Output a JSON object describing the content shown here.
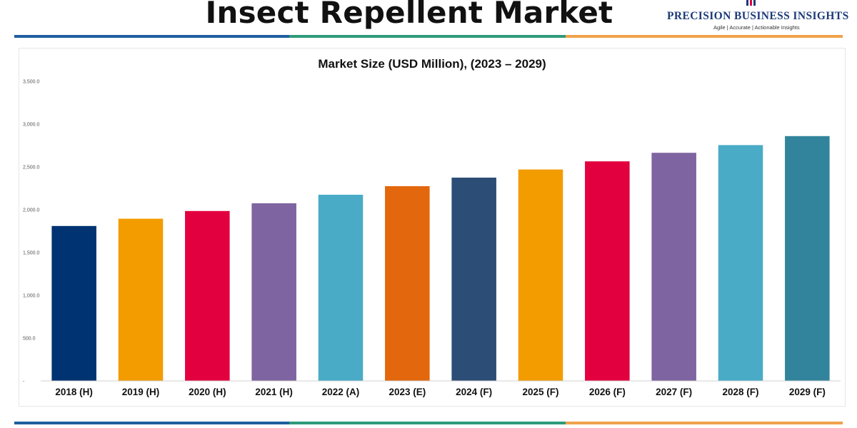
{
  "header": {
    "title": "Insect Repellent Market",
    "brand_name": "PRECISION BUSINESS INSIGHTS",
    "brand_tagline": "Agile | Accurate | Actionable Insights",
    "rule_colors": [
      "#1f5f9e",
      "#2e9a7a",
      "#f0a24a"
    ]
  },
  "chart_data": {
    "type": "bar",
    "title": "Market Size (USD Million), (2023 – 2029)",
    "xlabel": "",
    "ylabel": "",
    "categories": [
      "2018 (H)",
      "2019 (H)",
      "2020 (H)",
      "2021 (H)",
      "2022 (A)",
      "2023 (E)",
      "2024 (F)",
      "2025 (F)",
      "2026 (F)",
      "2027 (F)",
      "2028 (F)",
      "2029 (F)"
    ],
    "values": [
      1810,
      1895,
      1985,
      2075,
      2175,
      2275,
      2375,
      2470,
      2565,
      2665,
      2755,
      2860
    ],
    "colors": [
      "#003371",
      "#f39c00",
      "#e3003e",
      "#7e64a0",
      "#4aabc7",
      "#e2670d",
      "#2c4d75",
      "#f39c00",
      "#e3003e",
      "#7e64a0",
      "#4aabc7",
      "#31849b"
    ],
    "ylim": [
      0,
      3500
    ],
    "yticks": [
      0,
      500,
      1000,
      1500,
      2000,
      2500,
      3000,
      3500
    ],
    "ytick_labels": [
      "-",
      "500.0",
      "1,000.0",
      "1,500.0",
      "2,000.0",
      "2,500.0",
      "3,000.0",
      "3,500.0"
    ],
    "grid": false,
    "legend": "none"
  }
}
